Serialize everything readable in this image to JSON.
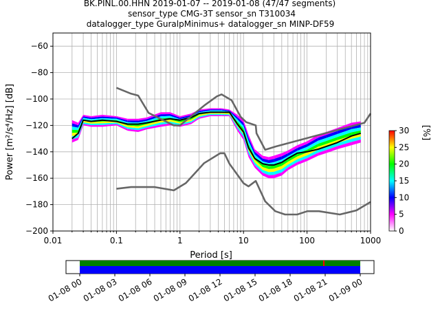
{
  "title_lines": [
    "BK.PINL.00.HHN   2019-01-07 -- 2019-01-08  (47/47 segments)",
    "sensor_type CMG-3T sensor_sn T310034",
    "datalogger_type GuralpMinimus+ datalogger_sn MINP-DF59"
  ],
  "chart_data": {
    "type": "heatmap",
    "xlabel": "Period [s]",
    "ylabel": "Power [m²/s⁴/Hz] [dB]",
    "x_scale": "log",
    "xlim": [
      0.01,
      1000
    ],
    "ylim": [
      -200,
      -50
    ],
    "x_ticks": [
      0.01,
      0.1,
      1,
      10,
      100,
      1000
    ],
    "x_tick_labels": [
      "0.01",
      "0.1",
      "1",
      "10",
      "100",
      "1000"
    ],
    "y_ticks": [
      -200,
      -180,
      -160,
      -140,
      -120,
      -100,
      -80,
      -60
    ],
    "grid": true,
    "colorbar": {
      "label": "[%]",
      "range": [
        0,
        30
      ],
      "ticks": [
        0,
        5,
        10,
        15,
        20,
        25,
        30
      ],
      "colors": [
        "#ffffff",
        "#ff00ff",
        "#0000ff",
        "#00ffff",
        "#00ff00",
        "#ffff00",
        "#ff0000"
      ]
    },
    "series": [
      {
        "role": "mean",
        "color": "#000000",
        "x": [
          0.02,
          0.025,
          0.03,
          0.04,
          0.06,
          0.1,
          0.15,
          0.22,
          0.3,
          0.5,
          0.7,
          1,
          1.5,
          2,
          3,
          4.5,
          6,
          8,
          10,
          12,
          15,
          20,
          25,
          30,
          40,
          50,
          70,
          100,
          150,
          200,
          300,
          500,
          700
        ],
        "y": [
          -130,
          -126,
          -116,
          -117,
          -116,
          -117,
          -119,
          -119,
          -118,
          -116,
          -115,
          -116,
          -114,
          -111,
          -110,
          -110,
          -110,
          -119,
          -125,
          -137,
          -145,
          -149,
          -150,
          -150,
          -148,
          -145,
          -141,
          -140,
          -138,
          -136,
          -133,
          -128,
          -126
        ]
      },
      {
        "role": "NHNM",
        "color": "#666666",
        "x": [
          0.1,
          0.17,
          0.22,
          0.32,
          0.8,
          1,
          2.4,
          3.8,
          4.5,
          6.5,
          9,
          11,
          15.6,
          16,
          21.9,
          32,
          800,
          1000
        ],
        "y": [
          -91.5,
          -96,
          -97.4,
          -110.5,
          -120,
          -120,
          -105,
          -98,
          -96.5,
          -101,
          -113.5,
          -117.5,
          -120,
          -126,
          -138.5,
          -136,
          -118,
          -111
        ]
      },
      {
        "role": "NLNM",
        "color": "#666666",
        "x": [
          0.1,
          0.17,
          0.4,
          0.8,
          1.24,
          2.4,
          4.3,
          5,
          6,
          10,
          12,
          15.6,
          21.9,
          31.6,
          45,
          70,
          101,
          154,
          328,
          600,
          1000
        ],
        "y": [
          -168,
          -166.7,
          -166.7,
          -169.2,
          -163.7,
          -148.6,
          -141.1,
          -141.1,
          -149,
          -163.8,
          -166.2,
          -162.1,
          -177.5,
          -185,
          -187.5,
          -187.5,
          -185,
          -185,
          -187.5,
          -184.4,
          -178
        ]
      }
    ],
    "density_band": {
      "x": [
        0.02,
        0.025,
        0.03,
        0.04,
        0.06,
        0.1,
        0.15,
        0.22,
        0.3,
        0.5,
        0.7,
        1,
        1.5,
        2,
        3,
        4.5,
        6,
        8,
        10,
        12,
        15,
        20,
        25,
        30,
        40,
        50,
        70,
        100,
        150,
        200,
        300,
        500,
        700
      ],
      "y_high": [
        -116,
        -118,
        -112,
        -113,
        -112,
        -113,
        -115,
        -115,
        -114,
        -110,
        -110,
        -113,
        -111,
        -108,
        -107,
        -107,
        -108,
        -112,
        -116,
        -127,
        -138,
        -143,
        -144,
        -143,
        -141,
        -139,
        -135,
        -132,
        -127,
        -125,
        -122,
        -118,
        -117
      ],
      "y_low": [
        -133,
        -131,
        -120,
        -121,
        -121,
        -120,
        -124,
        -125,
        -123,
        -121,
        -120,
        -121,
        -119,
        -115,
        -113,
        -113,
        -113,
        -124,
        -131,
        -144,
        -152,
        -158,
        -160,
        -160,
        -158,
        -154,
        -150,
        -147,
        -143,
        -141,
        -138,
        -135,
        -133
      ]
    }
  },
  "timeline": {
    "tick_labels": [
      "01-08 00",
      "01-08 03",
      "01-08 06",
      "01-08 09",
      "01-08 12",
      "01-08 15",
      "01-08 18",
      "01-08 21",
      "01-09 00"
    ],
    "data_color": "#0000ff",
    "psd_color": "#008000",
    "marker_color": "#ff0000"
  }
}
